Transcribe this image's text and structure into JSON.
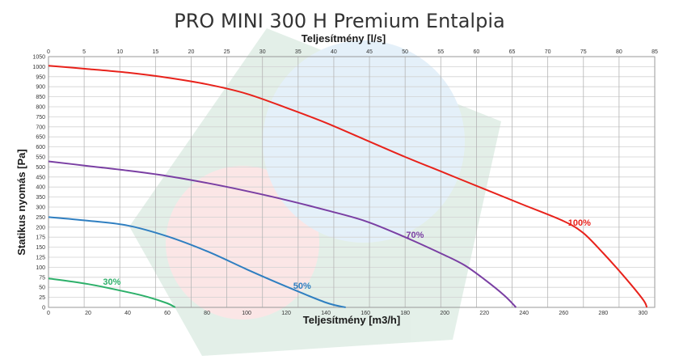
{
  "chart_data": {
    "type": "line",
    "title": "PRO MINI 300 H Premium Entalpia",
    "xlabel": "Teljesítmény [m3/h]",
    "x2label": "Teljesítmény [l/s]",
    "ylabel": "Statikus nyomás [Pa]",
    "xlim": [
      0,
      306
    ],
    "x2lim": [
      0,
      85
    ],
    "ylim": [
      0,
      1050
    ],
    "xticks": [
      0,
      20,
      40,
      60,
      80,
      100,
      120,
      140,
      160,
      180,
      200,
      220,
      240,
      260,
      280,
      300
    ],
    "x2ticks": [
      0,
      5,
      10,
      15,
      20,
      25,
      30,
      35,
      40,
      45,
      50,
      55,
      60,
      65,
      70,
      75,
      80,
      85
    ],
    "yticks": [
      0,
      25,
      50,
      75,
      100,
      125,
      150,
      175,
      200,
      250,
      300,
      350,
      400,
      450,
      500,
      550,
      600,
      650,
      700,
      750,
      800,
      850,
      900,
      950,
      1000,
      1050
    ],
    "ytick_labels": [
      "0",
      "25",
      "50",
      "75",
      "100",
      "125",
      "150",
      "175",
      "200",
      "250",
      "300",
      "350",
      "400",
      "450",
      "500",
      "550",
      "600",
      "650",
      "700",
      "750",
      "800",
      "850",
      "900",
      "950",
      "1000",
      "1050"
    ],
    "grid": true,
    "series": [
      {
        "name": "100%",
        "color": "#e8221b",
        "x": [
          0,
          20,
          40,
          60,
          80,
          100,
          120,
          140,
          160,
          180,
          200,
          220,
          240,
          260,
          270,
          280,
          290,
          300,
          302
        ],
        "y": [
          1005,
          988,
          970,
          945,
          912,
          865,
          795,
          720,
          635,
          550,
          470,
          390,
          310,
          230,
          185,
          135,
          80,
          20,
          0
        ]
      },
      {
        "name": "70%",
        "color": "#7a3fa3",
        "x": [
          0,
          20,
          40,
          60,
          80,
          100,
          120,
          140,
          160,
          180,
          200,
          210,
          220,
          230,
          236
        ],
        "y": [
          528,
          505,
          482,
          455,
          420,
          380,
          335,
          285,
          230,
          175,
          130,
          105,
          70,
          30,
          0
        ]
      },
      {
        "name": "50%",
        "color": "#2f7fc1",
        "x": [
          0,
          20,
          40,
          60,
          80,
          100,
          120,
          140,
          150
        ],
        "y": [
          250,
          232,
          208,
          177,
          140,
          95,
          52,
          12,
          0
        ]
      },
      {
        "name": "30%",
        "color": "#2db06a",
        "x": [
          0,
          20,
          40,
          50,
          60,
          64
        ],
        "y": [
          72,
          58,
          38,
          26,
          10,
          0
        ]
      }
    ]
  }
}
